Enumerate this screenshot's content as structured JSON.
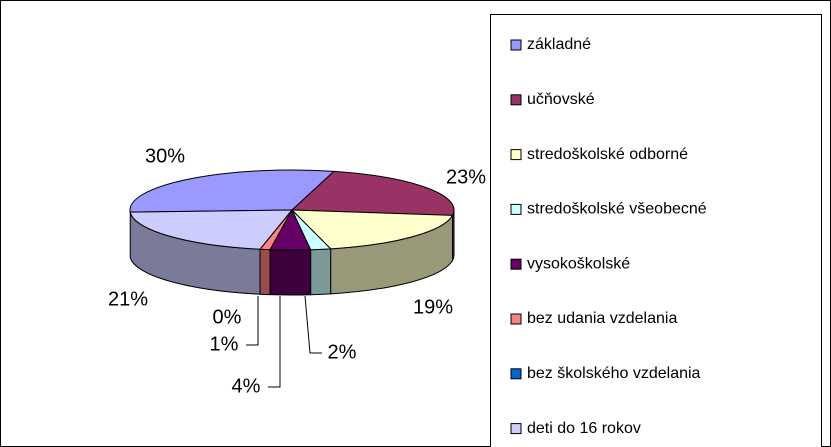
{
  "chart_data": {
    "type": "pie3d",
    "categories": [
      "základné",
      "učňovské",
      "stredoškolské odborné",
      "stredoškolské všeobecné",
      "vysokoškolské",
      "bez udania vzdelania",
      "bez školského vzdelania",
      "deti do 16 rokov"
    ],
    "values": [
      30,
      23,
      19,
      2,
      4,
      1,
      0,
      21
    ],
    "value_labels": [
      "30%",
      "23%",
      "19%",
      "2%",
      "4%",
      "1%",
      "0%",
      "21%"
    ],
    "colors": [
      "#9999ff",
      "#993366",
      "#ffffcc",
      "#ccffff",
      "#660066",
      "#ff8080",
      "#0066cc",
      "#ccccff"
    ],
    "legend": "right"
  }
}
